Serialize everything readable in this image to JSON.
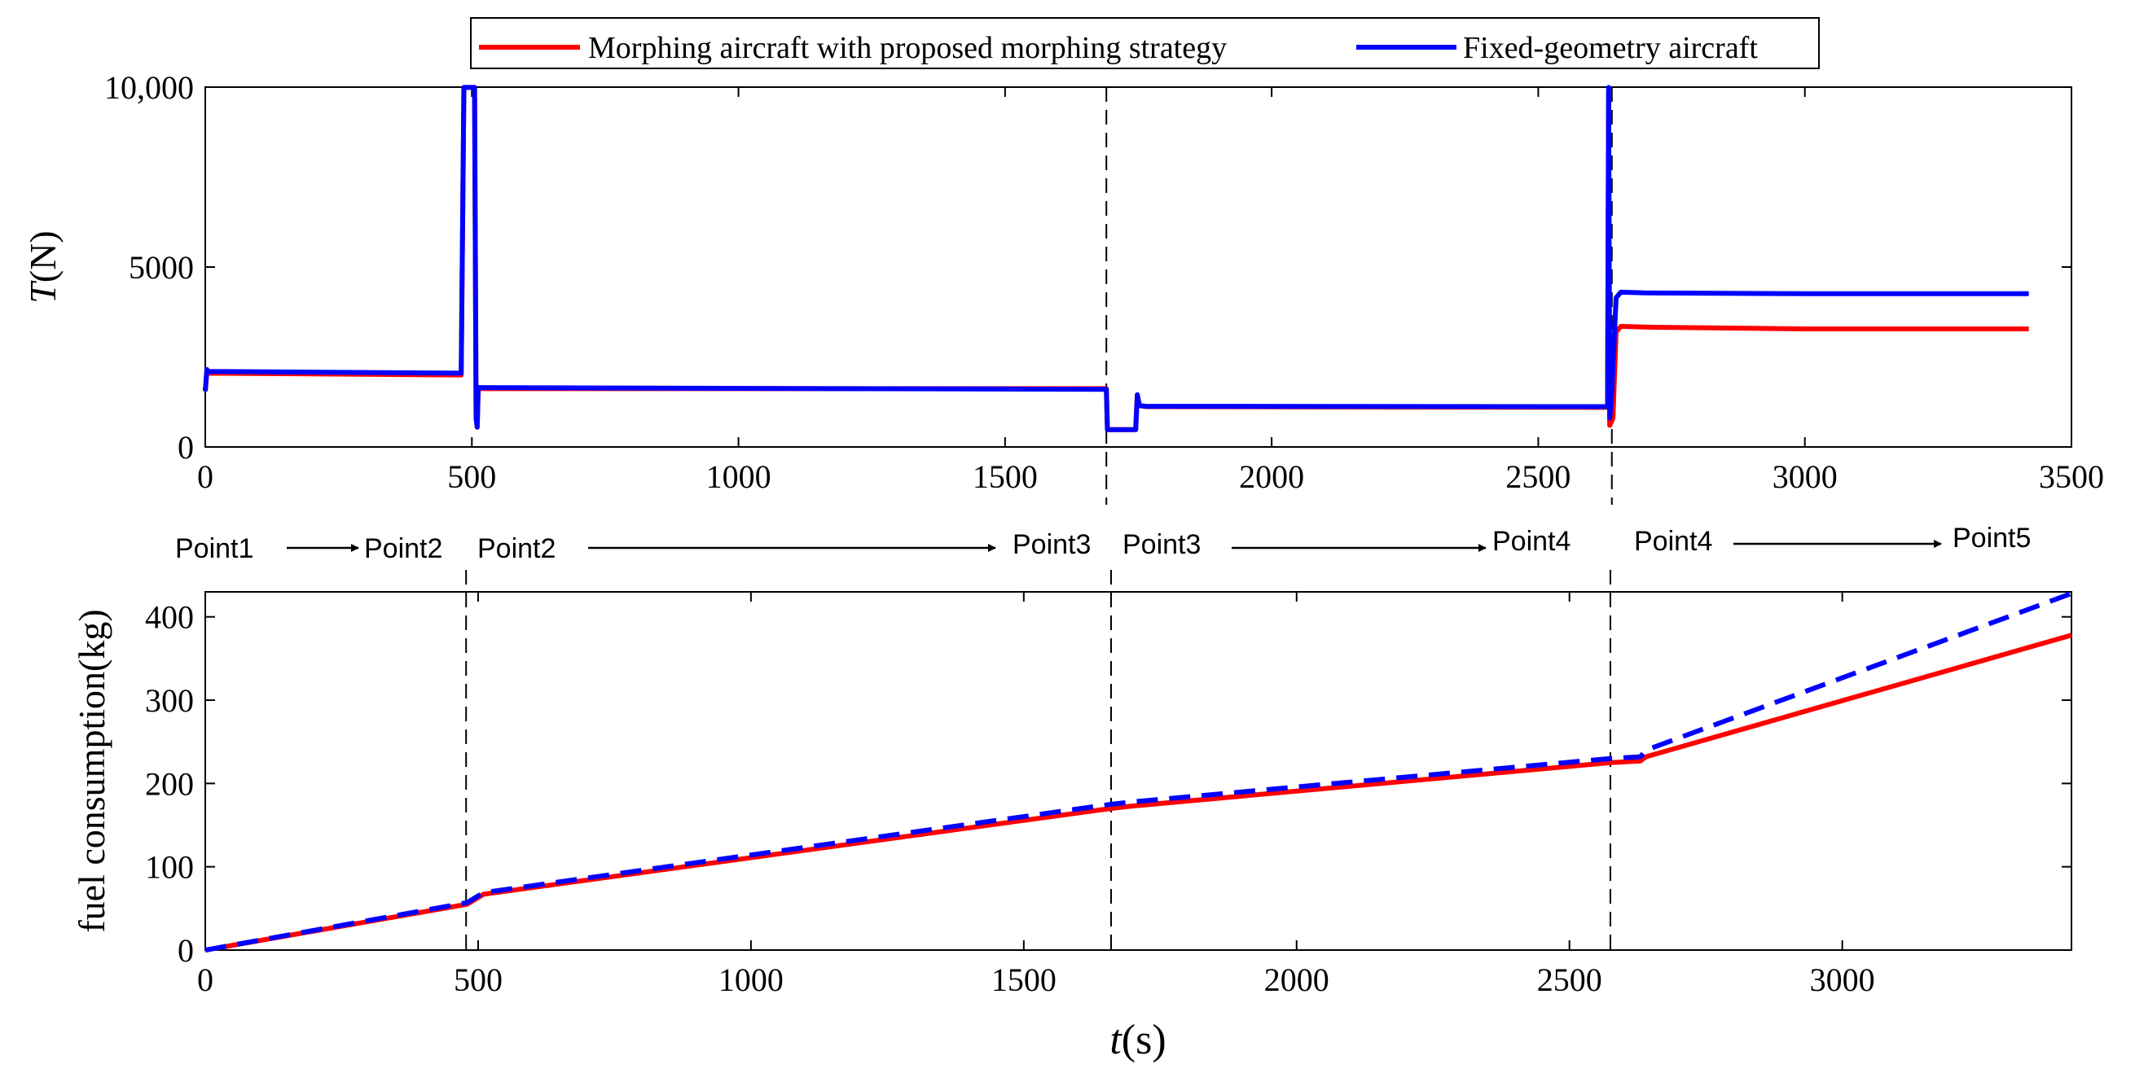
{
  "chart_data": [
    {
      "type": "line",
      "ylabel_italic": "T",
      "ylabel_unit": "(N)",
      "xlim": [
        0,
        3500
      ],
      "ylim": [
        0,
        10000
      ],
      "xticks": [
        0,
        500,
        1000,
        1500,
        2000,
        2500,
        3000,
        3500
      ],
      "xtick_labels": [
        "0",
        "500",
        "1000",
        "1500",
        "2000",
        "2500",
        "3000",
        "3500"
      ],
      "yticks": [
        0,
        5000,
        10000
      ],
      "ytick_labels": [
        "0",
        "5000",
        "10,000"
      ],
      "legend": {
        "position": "top-center",
        "entries": [
          {
            "label": "Morphing aircraft with proposed morphing strategy",
            "color": "#ff0000"
          },
          {
            "label": "Fixed-geometry aircraft",
            "color": "#0000ff"
          }
        ]
      },
      "vlines": [
        1690,
        2638
      ],
      "series": [
        {
          "name": "Morphing aircraft with proposed morphing strategy",
          "color": "#ff0000",
          "dash": "solid",
          "x": [
            0,
            3,
            5,
            480,
            485,
            490,
            505,
            508,
            510,
            512,
            520,
            1690,
            1692,
            1745,
            1748,
            1752,
            1765,
            2630,
            2632,
            2634,
            2640,
            2646,
            2655,
            2700,
            3000,
            3420
          ],
          "y": [
            1550,
            2150,
            2050,
            2000,
            9990,
            9990,
            9990,
            800,
            550,
            1620,
            1620,
            1620,
            480,
            480,
            1450,
            1150,
            1120,
            1100,
            9900,
            600,
            800,
            3200,
            3350,
            3330,
            3280,
            3280
          ]
        },
        {
          "name": "Fixed-geometry aircraft",
          "color": "#0000ff",
          "dash": "solid",
          "x": [
            0,
            3,
            5,
            480,
            485,
            490,
            505,
            508,
            510,
            512,
            520,
            1690,
            1692,
            1745,
            1748,
            1752,
            1765,
            2630,
            2632,
            2634,
            2638,
            2646,
            2655,
            2700,
            3000,
            3420
          ],
          "y": [
            1550,
            2150,
            2100,
            2050,
            9990,
            9990,
            9990,
            800,
            550,
            1650,
            1650,
            1600,
            480,
            480,
            1450,
            1150,
            1130,
            1120,
            9990,
            800,
            1600,
            4150,
            4300,
            4280,
            4260,
            4260
          ]
        }
      ]
    },
    {
      "type": "line",
      "xlabel_italic": "t",
      "xlabel_unit": "(s)",
      "ylabel": "fuel consumption(kg)",
      "xlim": [
        0,
        3420
      ],
      "ylim": [
        0,
        430
      ],
      "xticks": [
        0,
        500,
        1000,
        1500,
        2000,
        2500,
        3000
      ],
      "xtick_labels": [
        "0",
        "500",
        "1000",
        "1500",
        "2000",
        "2500",
        "3000"
      ],
      "yticks": [
        0,
        100,
        200,
        300,
        400
      ],
      "ytick_labels": [
        "0",
        "100",
        "200",
        "300",
        "400"
      ],
      "vlines": [
        478,
        1660,
        2575
      ],
      "series": [
        {
          "name": "Morphing aircraft with proposed morphing strategy",
          "color": "#ff0000",
          "dash": "solid",
          "x": [
            0,
            480,
            510,
            1660,
            1700,
            2575,
            2630,
            2640,
            3420
          ],
          "y": [
            0,
            55,
            67,
            170,
            173,
            225,
            227,
            232,
            378
          ]
        },
        {
          "name": "Fixed-geometry aircraft",
          "color": "#0000ff",
          "dash": "dashed",
          "x": [
            0,
            480,
            510,
            1660,
            1700,
            2575,
            2630,
            2640,
            3420
          ],
          "y": [
            0,
            57,
            69,
            175,
            178,
            230,
            232,
            240,
            428
          ]
        }
      ],
      "annotations": [
        {
          "from": "Point1",
          "to": "Point2"
        },
        {
          "from": "Point2",
          "to": "Point3"
        },
        {
          "from": "Point3",
          "to": "Point4"
        },
        {
          "from": "Point4",
          "to": "Point5"
        }
      ]
    }
  ]
}
